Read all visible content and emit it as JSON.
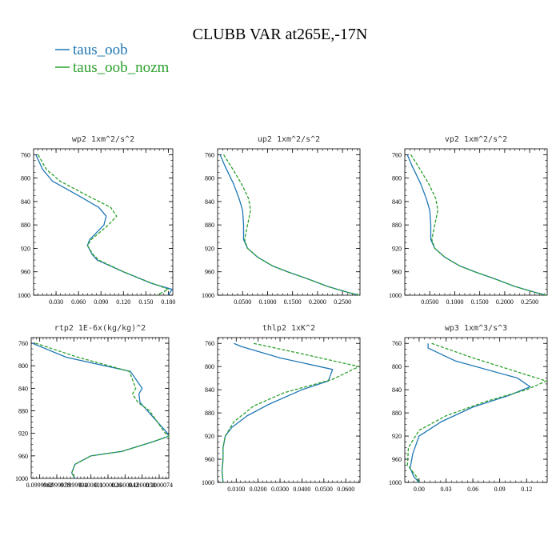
{
  "figure": {
    "title": "CLUBB VAR at265E,-17N",
    "legend": [
      {
        "label": "taus_oob",
        "color": "#1f77b4",
        "dash": "solid"
      },
      {
        "label": "taus_oob_nozm",
        "color": "#2ca02c",
        "dash": "dashed"
      }
    ]
  },
  "chart_data": [
    {
      "type": "line",
      "title": "wp2  1xm^2/s^2",
      "ylim": [
        1000,
        750
      ],
      "yticks": [
        760,
        800,
        840,
        880,
        920,
        960,
        1000
      ],
      "xlim": [
        0.0,
        0.186
      ],
      "xticks": [
        0.03,
        0.06,
        0.09,
        0.12,
        0.15,
        0.18
      ],
      "xticklabels": [
        "0.030",
        "0.060",
        "0.090",
        "0.120",
        "0.150",
        "0.180"
      ],
      "series": [
        {
          "name": "taus_oob",
          "points": [
            [
              0.003,
              760
            ],
            [
              0.012,
              785
            ],
            [
              0.025,
              805
            ],
            [
              0.06,
              830
            ],
            [
              0.087,
              850
            ],
            [
              0.097,
              865
            ],
            [
              0.094,
              880
            ],
            [
              0.075,
              905
            ],
            [
              0.072,
              915
            ],
            [
              0.078,
              930
            ],
            [
              0.085,
              940
            ],
            [
              0.12,
              960
            ],
            [
              0.158,
              980
            ],
            [
              0.185,
              990
            ],
            [
              0.18,
              1000
            ]
          ]
        },
        {
          "name": "taus_oob_nozm",
          "points": [
            [
              0.006,
              760
            ],
            [
              0.017,
              785
            ],
            [
              0.035,
              805
            ],
            [
              0.072,
              830
            ],
            [
              0.103,
              850
            ],
            [
              0.111,
              865
            ],
            [
              0.1,
              880
            ],
            [
              0.077,
              905
            ],
            [
              0.072,
              915
            ],
            [
              0.079,
              930
            ],
            [
              0.087,
              940
            ],
            [
              0.12,
              960
            ],
            [
              0.155,
              978
            ],
            [
              0.17,
              985
            ],
            [
              0.18,
              990
            ],
            [
              0.165,
              1000
            ]
          ]
        }
      ]
    },
    {
      "type": "line",
      "title": "up2  1xm^2/s^2",
      "ylim": [
        1000,
        750
      ],
      "yticks": [
        760,
        800,
        840,
        880,
        920,
        960,
        1000
      ],
      "xlim": [
        0.0,
        0.285
      ],
      "xticks": [
        0.05,
        0.1,
        0.15,
        0.2,
        0.25
      ],
      "xticklabels": [
        "0.0500",
        "0.1000",
        "0.1500",
        "0.2000",
        "0.2500"
      ],
      "series": [
        {
          "name": "taus_oob",
          "points": [
            [
              0.005,
              760
            ],
            [
              0.015,
              780
            ],
            [
              0.032,
              810
            ],
            [
              0.043,
              835
            ],
            [
              0.05,
              855
            ],
            [
              0.052,
              880
            ],
            [
              0.052,
              905
            ],
            [
              0.06,
              920
            ],
            [
              0.08,
              935
            ],
            [
              0.11,
              950
            ],
            [
              0.14,
              960
            ],
            [
              0.18,
              972
            ],
            [
              0.22,
              985
            ],
            [
              0.26,
              995
            ],
            [
              0.283,
              1000
            ]
          ]
        },
        {
          "name": "taus_oob_nozm",
          "points": [
            [
              0.012,
              760
            ],
            [
              0.027,
              780
            ],
            [
              0.048,
              810
            ],
            [
              0.062,
              835
            ],
            [
              0.066,
              855
            ],
            [
              0.06,
              880
            ],
            [
              0.054,
              905
            ],
            [
              0.06,
              920
            ],
            [
              0.08,
              935
            ],
            [
              0.11,
              950
            ],
            [
              0.14,
              960
            ],
            [
              0.18,
              972
            ],
            [
              0.22,
              985
            ],
            [
              0.26,
              995
            ],
            [
              0.283,
              1000
            ]
          ]
        }
      ]
    },
    {
      "type": "line",
      "title": "vp2  1xm^2/s^2",
      "ylim": [
        1000,
        750
      ],
      "yticks": [
        760,
        800,
        840,
        880,
        920,
        960,
        1000
      ],
      "xlim": [
        0.0,
        0.285
      ],
      "xticks": [
        0.05,
        0.1,
        0.15,
        0.2,
        0.25
      ],
      "xticklabels": [
        "0.0500",
        "0.1000",
        "0.1500",
        "0.2000",
        "0.2500"
      ],
      "series": [
        {
          "name": "taus_oob",
          "points": [
            [
              0.005,
              760
            ],
            [
              0.015,
              780
            ],
            [
              0.032,
              810
            ],
            [
              0.043,
              835
            ],
            [
              0.05,
              855
            ],
            [
              0.052,
              880
            ],
            [
              0.052,
              905
            ],
            [
              0.06,
              920
            ],
            [
              0.08,
              935
            ],
            [
              0.11,
              950
            ],
            [
              0.14,
              960
            ],
            [
              0.18,
              972
            ],
            [
              0.22,
              985
            ],
            [
              0.26,
              995
            ],
            [
              0.283,
              1000
            ]
          ]
        },
        {
          "name": "taus_oob_nozm",
          "points": [
            [
              0.012,
              760
            ],
            [
              0.027,
              780
            ],
            [
              0.048,
              810
            ],
            [
              0.062,
              835
            ],
            [
              0.066,
              855
            ],
            [
              0.06,
              880
            ],
            [
              0.054,
              905
            ],
            [
              0.06,
              920
            ],
            [
              0.08,
              935
            ],
            [
              0.11,
              950
            ],
            [
              0.14,
              960
            ],
            [
              0.18,
              972
            ],
            [
              0.22,
              985
            ],
            [
              0.26,
              995
            ],
            [
              0.283,
              1000
            ]
          ]
        }
      ]
    },
    {
      "type": "line",
      "title": "rtp2  1E-6x(kg/kg)^2",
      "ylim": [
        1000,
        750
      ],
      "yticks": [
        760,
        800,
        840,
        880,
        920,
        960,
        1000
      ],
      "xlim": [
        0.0999954,
        0.1000083
      ],
      "xticks": [
        0.0999962,
        0.0999978,
        0.0999994,
        0.100001,
        0.1000026,
        0.1000042,
        0.1000058,
        0.1000074
      ],
      "xticklabels": [
        "0.0999962",
        "0.0999978",
        "0.0999994",
        "0.100001",
        "0.1000026",
        "0.1000042",
        "0.1000058",
        "0.1000074"
      ],
      "series": [
        {
          "name": "taus_oob",
          "points": [
            [
              0.0999955,
              760
            ],
            [
              0.0999987,
              785
            ],
            [
              0.1000047,
              810
            ],
            [
              0.1000058,
              840
            ],
            [
              0.1000055,
              850
            ],
            [
              0.1000056,
              865
            ],
            [
              0.1000063,
              880
            ],
            [
              0.1000081,
              918
            ],
            [
              0.1000083,
              925
            ],
            [
              0.1000068,
              935
            ],
            [
              0.1000039,
              952
            ],
            [
              0.100001,
              960
            ],
            [
              0.0999995,
              975
            ],
            [
              0.0999992,
              990
            ],
            [
              0.0999995,
              1000
            ]
          ]
        },
        {
          "name": "taus_oob_nozm",
          "points": [
            [
              0.0999958,
              760
            ],
            [
              0.0999998,
              785
            ],
            [
              0.1000046,
              810
            ],
            [
              0.1000052,
              840
            ],
            [
              0.1000049,
              850
            ],
            [
              0.1000054,
              865
            ],
            [
              0.1000065,
              880
            ],
            [
              0.1000079,
              918
            ],
            [
              0.1000083,
              925
            ],
            [
              0.1000068,
              935
            ],
            [
              0.1000039,
              952
            ],
            [
              0.100001,
              960
            ],
            [
              0.0999995,
              975
            ],
            [
              0.0999992,
              990
            ],
            [
              0.0999995,
              1000
            ]
          ]
        }
      ]
    },
    {
      "type": "line",
      "title": "thlp2  1xK^2",
      "ylim": [
        1000,
        750
      ],
      "yticks": [
        760,
        800,
        840,
        880,
        920,
        960,
        1000
      ],
      "xlim": [
        0.0015,
        0.0665
      ],
      "xticks": [
        0.01,
        0.02,
        0.03,
        0.04,
        0.05,
        0.06
      ],
      "xticklabels": [
        "0.0100",
        "0.0200",
        "0.0300",
        "0.0400",
        "0.0500",
        "0.0600"
      ],
      "series": [
        {
          "name": "taus_oob",
          "points": [
            [
              0.009,
              760
            ],
            [
              0.012,
              765
            ],
            [
              0.03,
              785
            ],
            [
              0.054,
              805
            ],
            [
              0.052,
              825
            ],
            [
              0.04,
              840
            ],
            [
              0.025,
              865
            ],
            [
              0.015,
              885
            ],
            [
              0.008,
              905
            ],
            [
              0.005,
              920
            ],
            [
              0.004,
              940
            ],
            [
              0.004,
              960
            ],
            [
              0.0035,
              980
            ],
            [
              0.004,
              1000
            ]
          ]
        },
        {
          "name": "taus_oob_nozm",
          "points": [
            [
              0.018,
              760
            ],
            [
              0.04,
              778
            ],
            [
              0.066,
              800
            ],
            [
              0.054,
              822
            ],
            [
              0.032,
              845
            ],
            [
              0.018,
              868
            ],
            [
              0.009,
              895
            ],
            [
              0.005,
              920
            ],
            [
              0.004,
              940
            ],
            [
              0.004,
              960
            ],
            [
              0.0035,
              980
            ],
            [
              0.004,
              1000
            ]
          ]
        }
      ]
    },
    {
      "type": "line",
      "title": "wp3  1xm^3/s^3",
      "ylim": [
        1000,
        750
      ],
      "yticks": [
        760,
        800,
        840,
        880,
        920,
        960,
        1000
      ],
      "xlim": [
        -0.016,
        0.143
      ],
      "xticks": [
        0.0,
        0.03,
        0.06,
        0.09,
        0.12
      ],
      "xticklabels": [
        "0.00",
        "0.03",
        "0.06",
        "0.09",
        "0.12"
      ],
      "series": [
        {
          "name": "taus_oob",
          "points": [
            [
              0.01,
              760
            ],
            [
              0.01,
              768
            ],
            [
              0.04,
              790
            ],
            [
              0.11,
              820
            ],
            [
              0.124,
              835
            ],
            [
              0.1,
              850
            ],
            [
              0.06,
              870
            ],
            [
              0.025,
              895
            ],
            [
              0.0,
              920
            ],
            [
              -0.007,
              950
            ],
            [
              -0.01,
              975
            ],
            [
              -0.006,
              990
            ],
            [
              0.0,
              1000
            ]
          ]
        },
        {
          "name": "taus_oob_nozm",
          "points": [
            [
              0.014,
              760
            ],
            [
              0.06,
              785
            ],
            [
              0.142,
              825
            ],
            [
              0.12,
              840
            ],
            [
              0.075,
              860
            ],
            [
              0.03,
              885
            ],
            [
              0.0,
              910
            ],
            [
              -0.012,
              940
            ],
            [
              -0.013,
              970
            ],
            [
              -0.003,
              990
            ],
            [
              0.0,
              1000
            ]
          ]
        }
      ]
    }
  ]
}
